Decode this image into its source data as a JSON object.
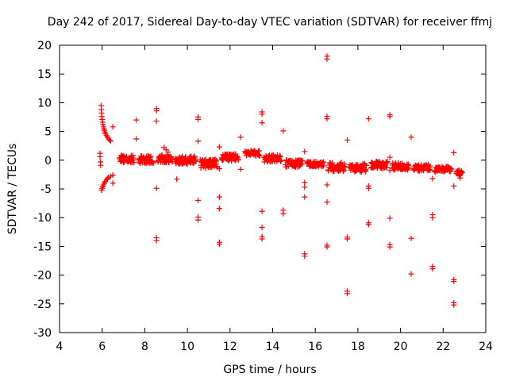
{
  "chart_data": {
    "type": "scatter",
    "title": "Day 242 of 2017, Sidereal Day-to-day VTEC variation (SDTVAR) for receiver ffmj",
    "xlabel": "GPS time / hours",
    "ylabel": "SDTVAR / TECUs",
    "xlim": [
      4,
      24
    ],
    "ylim": [
      -30,
      20
    ],
    "xticks": [
      4,
      6,
      8,
      10,
      12,
      14,
      16,
      18,
      20,
      22,
      24
    ],
    "yticks": [
      -30,
      -25,
      -20,
      -15,
      -10,
      -5,
      0,
      5,
      10,
      15,
      20
    ],
    "grid": false,
    "marker": "+",
    "marker_color": "#ff0000",
    "series": [
      {
        "name": "SDTVAR",
        "points": [
          [
            5.9,
            1.2
          ],
          [
            5.9,
            0.6
          ],
          [
            5.92,
            -0.3
          ],
          [
            5.93,
            -0.9
          ],
          [
            5.95,
            9.5
          ],
          [
            5.96,
            8.8
          ],
          [
            5.97,
            8.2
          ],
          [
            5.98,
            7.6
          ],
          [
            6.0,
            7.1
          ],
          [
            6.02,
            6.6
          ],
          [
            6.04,
            6.2
          ],
          [
            6.06,
            5.8
          ],
          [
            6.08,
            5.5
          ],
          [
            6.1,
            5.2
          ],
          [
            6.13,
            4.9
          ],
          [
            6.16,
            4.6
          ],
          [
            6.2,
            4.3
          ],
          [
            6.25,
            4.0
          ],
          [
            6.3,
            3.7
          ],
          [
            6.35,
            3.5
          ],
          [
            6.4,
            3.3
          ],
          [
            5.97,
            -5.2
          ],
          [
            6.0,
            -4.9
          ],
          [
            6.03,
            -4.6
          ],
          [
            6.06,
            -4.3
          ],
          [
            6.1,
            -4.0
          ],
          [
            6.15,
            -3.7
          ],
          [
            6.2,
            -3.4
          ],
          [
            6.25,
            -3.2
          ],
          [
            6.3,
            -3.0
          ],
          [
            6.4,
            -2.8
          ],
          [
            6.5,
            -2.6
          ],
          [
            6.5,
            5.8
          ],
          [
            6.5,
            -4.0
          ],
          [
            7.6,
            7.0
          ],
          [
            7.6,
            3.7
          ],
          [
            8.55,
            9.0
          ],
          [
            8.55,
            8.6
          ],
          [
            8.55,
            6.8
          ],
          [
            8.55,
            -4.9
          ],
          [
            8.55,
            -13.5
          ],
          [
            8.55,
            -14.0
          ],
          [
            8.9,
            2.2
          ],
          [
            9.0,
            1.8
          ],
          [
            9.1,
            1.4
          ],
          [
            9.5,
            -3.3
          ],
          [
            10.5,
            7.5
          ],
          [
            10.5,
            7.1
          ],
          [
            10.5,
            3.3
          ],
          [
            10.5,
            -7.0
          ],
          [
            10.5,
            -9.9
          ],
          [
            10.5,
            -10.4
          ],
          [
            11.5,
            2.3
          ],
          [
            11.5,
            -1.5
          ],
          [
            11.5,
            -6.4
          ],
          [
            11.5,
            -8.4
          ],
          [
            11.5,
            -14.3
          ],
          [
            11.5,
            -14.6
          ],
          [
            12.5,
            4.0
          ],
          [
            12.5,
            -1.6
          ],
          [
            13.5,
            8.4
          ],
          [
            13.5,
            8.0
          ],
          [
            13.5,
            6.5
          ],
          [
            13.5,
            -8.9
          ],
          [
            13.5,
            -11.7
          ],
          [
            13.5,
            -13.3
          ],
          [
            13.5,
            -13.7
          ],
          [
            14.5,
            5.1
          ],
          [
            14.5,
            -8.7
          ],
          [
            14.5,
            -9.3
          ],
          [
            15.5,
            1.5
          ],
          [
            15.5,
            -3.9
          ],
          [
            15.5,
            -4.7
          ],
          [
            15.5,
            -6.4
          ],
          [
            15.5,
            -16.3
          ],
          [
            15.5,
            -16.7
          ],
          [
            16.55,
            18.1
          ],
          [
            16.55,
            17.6
          ],
          [
            16.55,
            7.6
          ],
          [
            16.55,
            7.2
          ],
          [
            16.55,
            -4.3
          ],
          [
            16.55,
            -7.3
          ],
          [
            16.55,
            -14.8
          ],
          [
            16.55,
            -15.1
          ],
          [
            17.5,
            3.5
          ],
          [
            17.5,
            -13.4
          ],
          [
            17.5,
            -13.7
          ],
          [
            17.5,
            -22.8
          ],
          [
            17.5,
            -23.2
          ],
          [
            18.5,
            7.2
          ],
          [
            18.5,
            -4.5
          ],
          [
            18.5,
            -4.9
          ],
          [
            18.5,
            -10.9
          ],
          [
            18.5,
            -11.2
          ],
          [
            19.5,
            7.9
          ],
          [
            19.5,
            7.6
          ],
          [
            19.5,
            0.5
          ],
          [
            19.5,
            -1.8
          ],
          [
            19.5,
            -10.1
          ],
          [
            19.5,
            -14.7
          ],
          [
            19.5,
            -15.1
          ],
          [
            20.5,
            4.0
          ],
          [
            20.5,
            -13.6
          ],
          [
            20.5,
            -19.8
          ],
          [
            21.5,
            -3.2
          ],
          [
            21.5,
            -9.5
          ],
          [
            21.5,
            -10.0
          ],
          [
            21.5,
            -18.5
          ],
          [
            21.5,
            -18.9
          ],
          [
            22.5,
            1.3
          ],
          [
            22.5,
            -4.5
          ],
          [
            22.5,
            -20.8
          ],
          [
            22.5,
            -21.1
          ],
          [
            22.5,
            -24.8
          ],
          [
            22.5,
            -25.2
          ],
          [
            22.8,
            -3.1
          ],
          [
            22.75,
            -2.7
          ]
        ],
        "clusters": [
          {
            "x_start": 6.8,
            "x_end": 7.5,
            "y_center": 0.2,
            "spread": 0.8
          },
          {
            "x_start": 7.7,
            "x_end": 8.4,
            "y_center": 0.1,
            "spread": 0.8
          },
          {
            "x_start": 8.6,
            "x_end": 9.3,
            "y_center": 0.3,
            "spread": 0.9
          },
          {
            "x_start": 9.4,
            "x_end": 10.4,
            "y_center": 0.0,
            "spread": 0.9
          },
          {
            "x_start": 10.6,
            "x_end": 11.4,
            "y_center": -0.6,
            "spread": 1.0
          },
          {
            "x_start": 11.6,
            "x_end": 12.4,
            "y_center": 0.5,
            "spread": 0.8
          },
          {
            "x_start": 12.7,
            "x_end": 13.4,
            "y_center": 1.2,
            "spread": 0.6
          },
          {
            "x_start": 13.6,
            "x_end": 14.4,
            "y_center": 0.3,
            "spread": 0.8
          },
          {
            "x_start": 14.6,
            "x_end": 15.4,
            "y_center": -0.6,
            "spread": 0.8
          },
          {
            "x_start": 15.6,
            "x_end": 16.4,
            "y_center": -0.7,
            "spread": 0.6
          },
          {
            "x_start": 16.6,
            "x_end": 17.4,
            "y_center": -1.2,
            "spread": 1.0
          },
          {
            "x_start": 17.6,
            "x_end": 18.4,
            "y_center": -1.3,
            "spread": 1.0
          },
          {
            "x_start": 18.6,
            "x_end": 19.4,
            "y_center": -0.8,
            "spread": 0.8
          },
          {
            "x_start": 19.6,
            "x_end": 20.4,
            "y_center": -1.1,
            "spread": 0.8
          },
          {
            "x_start": 20.6,
            "x_end": 21.4,
            "y_center": -1.3,
            "spread": 0.7
          },
          {
            "x_start": 21.6,
            "x_end": 22.4,
            "y_center": -1.6,
            "spread": 0.6
          },
          {
            "x_start": 22.6,
            "x_end": 22.9,
            "y_center": -2.2,
            "spread": 0.6
          }
        ]
      }
    ]
  }
}
